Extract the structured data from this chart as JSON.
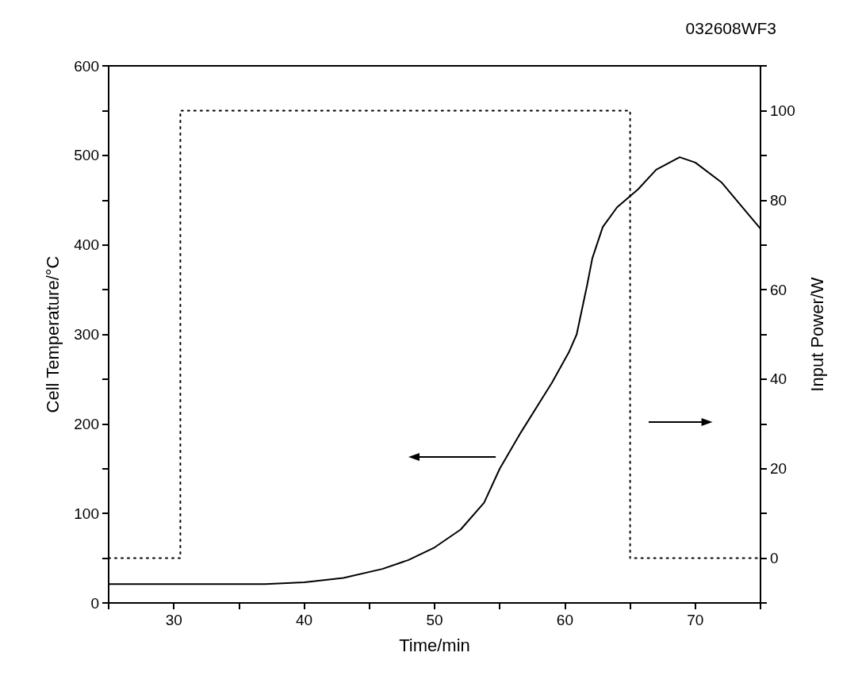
{
  "chart_data": {
    "type": "line",
    "title": "032608WF3",
    "xlabel": "Time/min",
    "ylabel": "Cell Temperature/°C",
    "y2label": "Input Power/W",
    "xlim": [
      25,
      75
    ],
    "xticks": [
      {
        "value": 25,
        "label": null
      },
      30,
      {
        "value": 35,
        "label": null
      },
      40,
      {
        "value": 45,
        "label": null
      },
      50,
      {
        "value": 55,
        "label": null
      },
      60,
      {
        "value": 65,
        "label": null
      },
      70,
      {
        "value": 75,
        "label": null
      }
    ],
    "ylim": [
      0,
      600
    ],
    "yticks": [
      0,
      {
        "value": 50,
        "label": null
      },
      100,
      {
        "value": 150,
        "label": null
      },
      200,
      {
        "value": 250,
        "label": null
      },
      300,
      {
        "value": 350,
        "label": null
      },
      400,
      {
        "value": 450,
        "label": null
      },
      500,
      {
        "value": 550,
        "label": null
      },
      600
    ],
    "y2lim": [
      -10,
      110
    ],
    "y2ticks": [
      {
        "value": -10,
        "label": null
      },
      0,
      {
        "value": 10,
        "label": null
      },
      20,
      {
        "value": 30,
        "label": null
      },
      40,
      {
        "value": 50,
        "label": null
      },
      60,
      {
        "value": 70,
        "label": null
      },
      80,
      {
        "value": 90,
        "label": null
      },
      100,
      {
        "value": 110,
        "label": null
      }
    ],
    "grid": false,
    "marker": "none",
    "series": [
      {
        "color": "#000000",
        "line_style": "solid",
        "x": [
          25,
          37,
          40,
          43,
          46,
          48,
          50,
          52,
          53.8,
          55,
          56.6,
          59,
          60.3,
          60.9,
          61.7,
          62.1,
          62.9,
          64,
          65.6,
          67,
          68.8,
          70,
          72,
          75
        ],
        "values": [
          21,
          21,
          23,
          28,
          38,
          48,
          62,
          82,
          112,
          150,
          190,
          246,
          280,
          300,
          355,
          385,
          420,
          442,
          462,
          484,
          498,
          492,
          470,
          418
        ]
      },
      {
        "type": "step",
        "axis": "y2",
        "color": "#000000",
        "line_style": "dotted",
        "x": [
          25,
          30.5,
          65,
          75
        ],
        "values": [
          0,
          100,
          0,
          0
        ]
      }
    ]
  }
}
